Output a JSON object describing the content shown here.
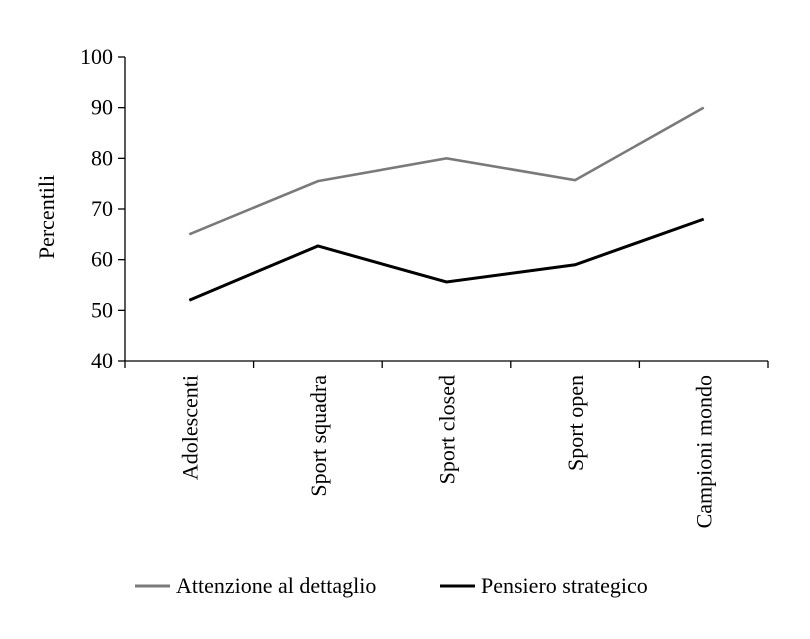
{
  "chart_data": {
    "type": "line",
    "title": "",
    "xlabel": "",
    "ylabel": "Percentili",
    "ylim": [
      40,
      100
    ],
    "yticks": [
      40,
      50,
      60,
      70,
      80,
      90,
      100
    ],
    "categories": [
      "Adolescenti",
      "Sport squadra",
      "Sport closed",
      "Sport open",
      "Campioni mondo"
    ],
    "series": [
      {
        "name": "Attenzione al dettaglio",
        "color": "#7a7a7a",
        "values": [
          65,
          75.5,
          80,
          75.7,
          90
        ]
      },
      {
        "name": "Pensiero strategico",
        "color": "#000000",
        "values": [
          52,
          62.7,
          55.6,
          59,
          68
        ]
      }
    ],
    "grid": false,
    "legend_position": "bottom"
  }
}
